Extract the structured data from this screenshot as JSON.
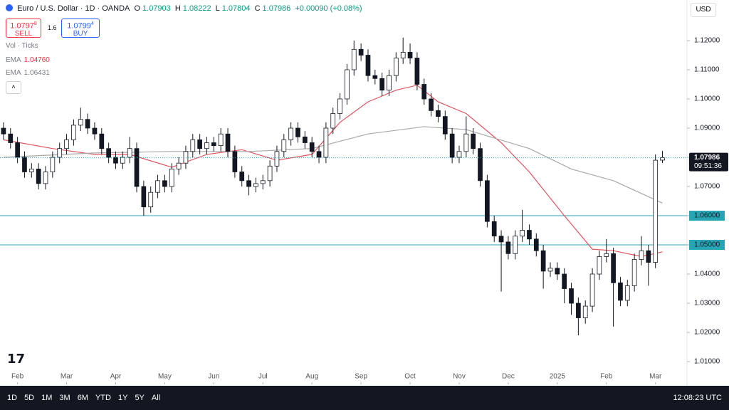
{
  "chart_data": {
    "type": "candlestick",
    "open": [
      1.09,
      1.088,
      1.085,
      1.08,
      1.075,
      1.076,
      1.071,
      1.075,
      1.08,
      1.083,
      1.086,
      1.091,
      1.093,
      1.09,
      1.088,
      1.083,
      1.08,
      1.078,
      1.08,
      1.083,
      1.07,
      1.063,
      1.068,
      1.072,
      1.07,
      1.076,
      1.078,
      1.082,
      1.086,
      1.083,
      1.085,
      1.084,
      1.088,
      1.082,
      1.075,
      1.072,
      1.07,
      1.071,
      1.072,
      1.077,
      1.082,
      1.086,
      1.09,
      1.087,
      1.085,
      1.082,
      1.08,
      1.09,
      1.095,
      1.1,
      1.11,
      1.117,
      1.115,
      1.108,
      1.107,
      1.103,
      1.108,
      1.114,
      1.116,
      1.114,
      1.105,
      1.1,
      1.096,
      1.094,
      1.088,
      1.08,
      1.082,
      1.088,
      1.083,
      1.072,
      1.058,
      1.053,
      1.051,
      1.047,
      1.053,
      1.055,
      1.052,
      1.048,
      1.041,
      1.042,
      1.04,
      1.035,
      1.03,
      1.025,
      1.029,
      1.04,
      1.046,
      1.047,
      1.037,
      1.031,
      1.036,
      1.045,
      1.048,
      1.044,
      1.07903
    ],
    "high": [
      1.092,
      1.09,
      1.087,
      1.082,
      1.078,
      1.078,
      1.077,
      1.082,
      1.085,
      1.088,
      1.093,
      1.097,
      1.095,
      1.092,
      1.09,
      1.085,
      1.082,
      1.082,
      1.087,
      1.085,
      1.072,
      1.07,
      1.074,
      1.074,
      1.078,
      1.08,
      1.084,
      1.088,
      1.088,
      1.087,
      1.087,
      1.09,
      1.09,
      1.084,
      1.077,
      1.074,
      1.073,
      1.074,
      1.079,
      1.084,
      1.088,
      1.092,
      1.092,
      1.089,
      1.087,
      1.084,
      1.092,
      1.097,
      1.102,
      1.112,
      1.12,
      1.119,
      1.117,
      1.11,
      1.109,
      1.11,
      1.116,
      1.121,
      1.119,
      1.116,
      1.107,
      1.102,
      1.098,
      1.096,
      1.09,
      1.084,
      1.094,
      1.09,
      1.085,
      1.074,
      1.06,
      1.055,
      1.053,
      1.055,
      1.062,
      1.057,
      1.054,
      1.05,
      1.044,
      1.044,
      1.042,
      1.037,
      1.032,
      1.031,
      1.042,
      1.048,
      1.052,
      1.049,
      1.039,
      1.038,
      1.047,
      1.053,
      1.05,
      1.081,
      1.08222
    ],
    "low": [
      1.086,
      1.083,
      1.078,
      1.073,
      1.073,
      1.069,
      1.069,
      1.073,
      1.078,
      1.081,
      1.084,
      1.089,
      1.088,
      1.086,
      1.081,
      1.078,
      1.076,
      1.076,
      1.078,
      1.068,
      1.06,
      1.061,
      1.066,
      1.068,
      1.068,
      1.074,
      1.076,
      1.08,
      1.081,
      1.081,
      1.082,
      1.082,
      1.08,
      1.073,
      1.07,
      1.067,
      1.068,
      1.069,
      1.07,
      1.075,
      1.08,
      1.084,
      1.085,
      1.083,
      1.08,
      1.078,
      1.078,
      1.088,
      1.093,
      1.098,
      1.108,
      1.113,
      1.106,
      1.105,
      1.101,
      1.101,
      1.106,
      1.112,
      1.112,
      1.103,
      1.098,
      1.094,
      1.092,
      1.086,
      1.078,
      1.078,
      1.08,
      1.081,
      1.07,
      1.056,
      1.051,
      1.034,
      1.045,
      1.045,
      1.051,
      1.05,
      1.046,
      1.035,
      1.039,
      1.038,
      1.03,
      1.026,
      1.019,
      1.023,
      1.027,
      1.038,
      1.044,
      1.022,
      1.029,
      1.029,
      1.034,
      1.043,
      1.036,
      1.042,
      1.07804
    ],
    "close": [
      1.088,
      1.085,
      1.08,
      1.075,
      1.076,
      1.071,
      1.075,
      1.08,
      1.083,
      1.086,
      1.091,
      1.093,
      1.09,
      1.088,
      1.083,
      1.08,
      1.078,
      1.08,
      1.083,
      1.07,
      1.063,
      1.068,
      1.072,
      1.07,
      1.076,
      1.078,
      1.082,
      1.086,
      1.083,
      1.085,
      1.084,
      1.088,
      1.082,
      1.075,
      1.072,
      1.07,
      1.071,
      1.072,
      1.077,
      1.082,
      1.086,
      1.09,
      1.087,
      1.085,
      1.082,
      1.08,
      1.09,
      1.095,
      1.1,
      1.11,
      1.117,
      1.115,
      1.108,
      1.107,
      1.103,
      1.108,
      1.114,
      1.116,
      1.114,
      1.105,
      1.1,
      1.096,
      1.094,
      1.088,
      1.08,
      1.082,
      1.088,
      1.083,
      1.072,
      1.058,
      1.053,
      1.051,
      1.047,
      1.053,
      1.055,
      1.052,
      1.048,
      1.041,
      1.042,
      1.04,
      1.035,
      1.03,
      1.025,
      1.029,
      1.04,
      1.046,
      1.047,
      1.037,
      1.031,
      1.036,
      1.045,
      1.048,
      1.044,
      1.079,
      1.07986
    ],
    "up_color": "#ffffff",
    "down_color": "#131722",
    "ema": [
      {
        "name": "EMA",
        "color": "#e05560",
        "x": [
          0,
          7,
          13,
          18,
          24,
          29,
          34,
          39,
          44,
          48,
          52,
          56,
          59,
          62,
          66,
          71,
          75,
          80,
          84,
          87,
          91,
          94
        ],
        "values": [
          1.086,
          1.083,
          1.081,
          1.081,
          1.0766,
          1.081,
          1.0826,
          1.079,
          1.081,
          1.092,
          1.099,
          1.103,
          1.1047,
          1.099,
          1.095,
          1.085,
          1.075,
          1.06,
          1.0485,
          1.048,
          1.046,
          1.0476
        ]
      },
      {
        "name": "EMA",
        "color": "#a8a8a8",
        "x": [
          0,
          13,
          24,
          35,
          44,
          52,
          60,
          66,
          75,
          81,
          87,
          94
        ],
        "values": [
          1.08,
          1.0815,
          1.082,
          1.082,
          1.083,
          1.088,
          1.0905,
          1.0895,
          1.083,
          1.076,
          1.072,
          1.06431
        ]
      }
    ],
    "hlines": [
      1.06,
      1.05
    ],
    "hline_color": "#26a6b5",
    "xlim": [
      -0.5,
      97.5
    ],
    "xticks": [
      {
        "value": 2,
        "label": "Feb"
      },
      {
        "value": 9,
        "label": "Mar"
      },
      {
        "value": 16,
        "label": "Apr"
      },
      {
        "value": 23,
        "label": "May"
      },
      {
        "value": 30,
        "label": "Jun"
      },
      {
        "value": 37,
        "label": "Jul"
      },
      {
        "value": 44,
        "label": "Aug"
      },
      {
        "value": 51,
        "label": "Sep"
      },
      {
        "value": 58,
        "label": "Oct"
      },
      {
        "value": 65,
        "label": "Nov"
      },
      {
        "value": 72,
        "label": "Dec"
      },
      {
        "value": 79,
        "label": "2025"
      },
      {
        "value": 86,
        "label": "Feb"
      },
      {
        "value": 93,
        "label": "Mar"
      }
    ],
    "ylim": [
      1.0022,
      1.1339
    ],
    "yticks": [
      {
        "value": 1.01,
        "label": "1.01000"
      },
      {
        "value": 1.02,
        "label": "1.02000"
      },
      {
        "value": 1.03,
        "label": "1.03000"
      },
      {
        "value": 1.04,
        "label": "1.04000"
      },
      {
        "value": 1.05,
        "label": "1.05000"
      },
      {
        "value": 1.06,
        "label": "1.06000"
      },
      {
        "value": 1.07,
        "label": "1.07000"
      },
      {
        "value": 1.08,
        "label": "1.08000"
      },
      {
        "value": 1.09,
        "label": "1.09000"
      },
      {
        "value": 1.1,
        "label": "1.10000"
      },
      {
        "value": 1.11,
        "label": "1.11000"
      },
      {
        "value": 1.12,
        "label": "1.12000"
      }
    ]
  },
  "ui": {
    "symbol": "Euro / U.S. Dollar · 1D · OANDA",
    "o": "O",
    "h": "H",
    "l": "L",
    "c": "C",
    "change": "+0.00090 (+0.08%)",
    "sell": {
      "price": "1.0797",
      "sup": "8",
      "label": "SELL"
    },
    "spread": "1.6",
    "buy": {
      "price": "1.0799",
      "sup": "4",
      "label": "BUY"
    },
    "vol": "Vol · Ticks",
    "ema1": {
      "label": "EMA",
      "value": "1.04760"
    },
    "ema2": {
      "label": "EMA",
      "value": "1.06431"
    },
    "currency": "USD",
    "timer": "09:51:36",
    "ranges": [
      "1D",
      "5D",
      "1M",
      "3M",
      "6M",
      "YTD",
      "1Y",
      "5Y",
      "All"
    ],
    "clock": "12:08:23 UTC"
  }
}
